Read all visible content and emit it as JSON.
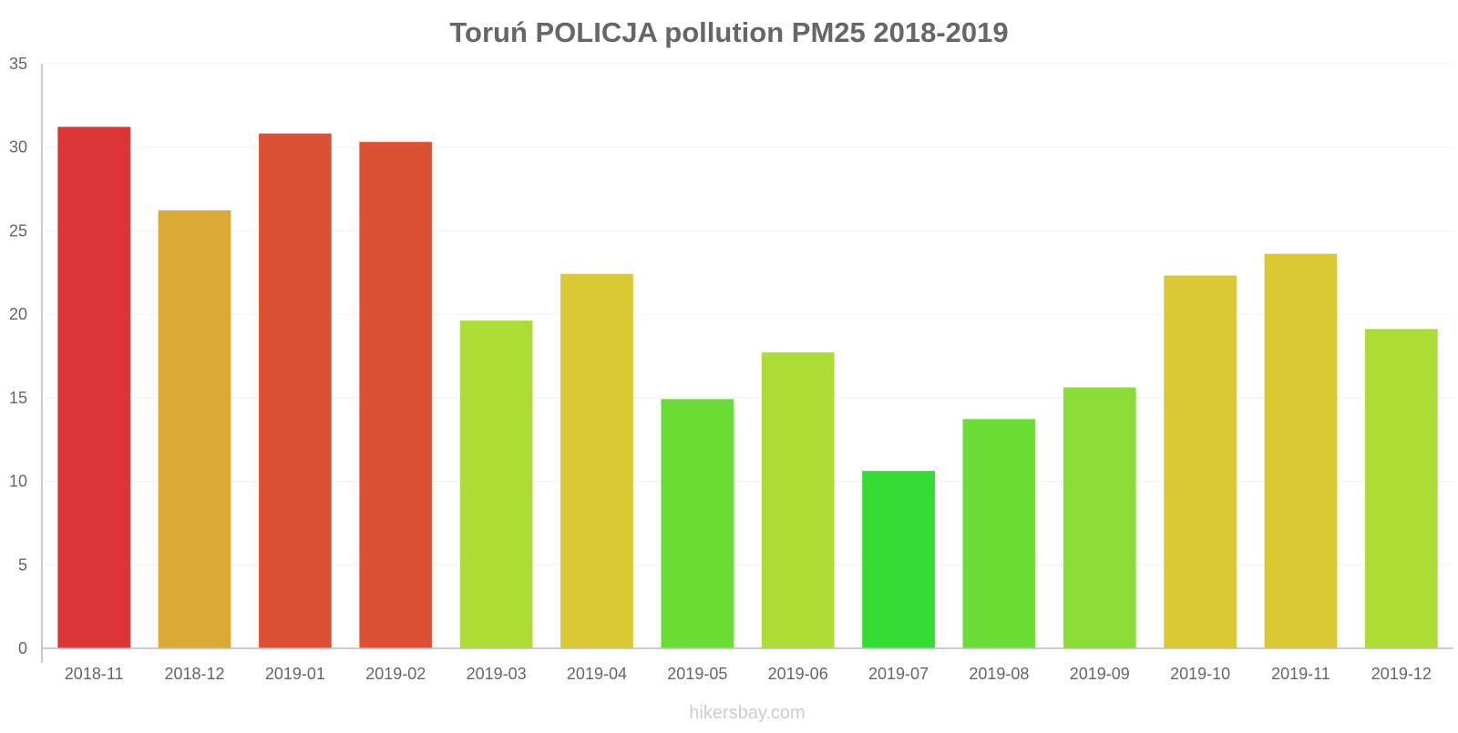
{
  "chart_data": {
    "type": "bar",
    "title": "Toruń POLICJA pollution PM25 2018-2019",
    "xlabel": "",
    "ylabel": "",
    "ylim": [
      0,
      35
    ],
    "yticks": [
      0,
      5,
      10,
      15,
      20,
      25,
      30,
      35
    ],
    "categories": [
      "2018-11",
      "2018-12",
      "2019-01",
      "2019-02",
      "2019-03",
      "2019-04",
      "2019-05",
      "2019-06",
      "2019-07",
      "2019-08",
      "2019-09",
      "2019-10",
      "2019-11",
      "2019-12"
    ],
    "values": [
      31.2,
      26.2,
      30.8,
      30.3,
      19.6,
      22.4,
      14.9,
      17.7,
      10.6,
      13.7,
      15.6,
      22.3,
      23.6,
      19.1
    ],
    "colors": [
      "#dc3535",
      "#dba935",
      "#dc5034",
      "#dc5034",
      "#acdc35",
      "#dac835",
      "#6bdc36",
      "#acdc35",
      "#35dc35",
      "#6bdc36",
      "#8bdc36",
      "#dac835",
      "#dac835",
      "#acdc35"
    ],
    "grid": true,
    "legend": "none"
  },
  "watermark": "hikersbay.com"
}
